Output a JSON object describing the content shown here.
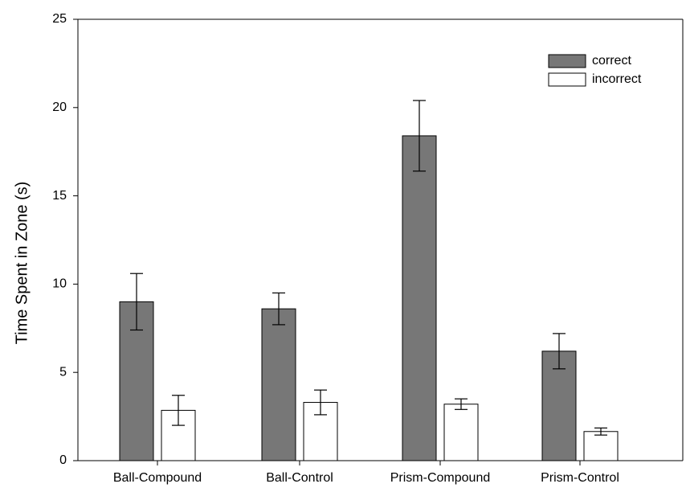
{
  "chart_data": {
    "type": "bar",
    "title": "",
    "xlabel": "",
    "ylabel": "Time Spent in Zone (s)",
    "categories": [
      "Ball-Compound",
      "Ball-Control",
      "Prism-Compound",
      "Prism-Control"
    ],
    "series": [
      {
        "name": "correct",
        "color": "#777777",
        "values": [
          9.0,
          8.6,
          18.4,
          6.2
        ],
        "errors": [
          1.6,
          0.9,
          2.0,
          1.0
        ]
      },
      {
        "name": "incorrect",
        "color": "#ffffff",
        "values": [
          2.85,
          3.3,
          3.2,
          1.65
        ],
        "errors": [
          0.85,
          0.7,
          0.3,
          0.2
        ]
      }
    ],
    "ylim": [
      0,
      25
    ],
    "yticks": [
      0,
      5,
      10,
      15,
      20,
      25
    ],
    "grid": false,
    "legend_position": "top-right"
  }
}
